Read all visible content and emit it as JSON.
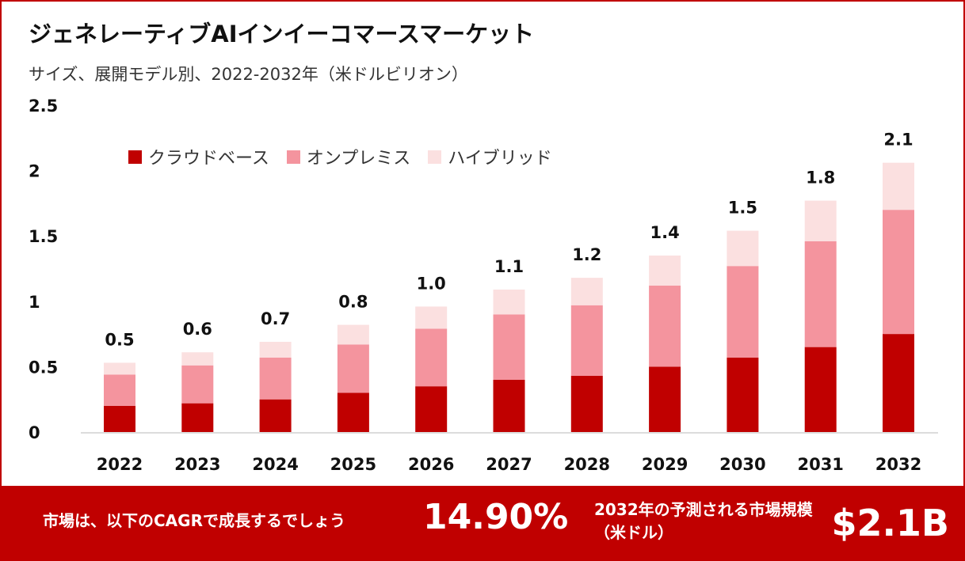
{
  "title": "ジェネレーティブAIインイーコマースマーケット",
  "subtitle": "サイズ、展開モデル別、2022-2032年（米ドルビリオン）",
  "legend": [
    {
      "label": "クラウドベース",
      "color": "#c00000"
    },
    {
      "label": "オンプレミス",
      "color": "#f4949e"
    },
    {
      "label": "ハイブリッド",
      "color": "#fbe0e0"
    }
  ],
  "footer": {
    "cagr_label": "市場は、以下のCAGRで成長するでしょう",
    "cagr_value": "14.90%",
    "size_label": "2032年の予測される市場規模（米ドル）",
    "size_value": "$2.1B"
  },
  "chart_data": {
    "type": "bar",
    "stacked": true,
    "categories": [
      "2022",
      "2023",
      "2024",
      "2025",
      "2026",
      "2027",
      "2028",
      "2029",
      "2030",
      "2031",
      "2032"
    ],
    "series": [
      {
        "name": "クラウドベース",
        "color": "#c00000",
        "values": [
          0.2,
          0.22,
          0.25,
          0.3,
          0.35,
          0.4,
          0.43,
          0.5,
          0.57,
          0.65,
          0.75
        ]
      },
      {
        "name": "オンプレミス",
        "color": "#f4949e",
        "values": [
          0.24,
          0.29,
          0.32,
          0.37,
          0.44,
          0.5,
          0.54,
          0.62,
          0.7,
          0.81,
          0.95
        ]
      },
      {
        "name": "ハイブリッド",
        "color": "#fbe0e0",
        "values": [
          0.09,
          0.1,
          0.12,
          0.15,
          0.17,
          0.19,
          0.21,
          0.23,
          0.27,
          0.31,
          0.36
        ]
      }
    ],
    "total_labels": [
      "0.5",
      "0.6",
      "0.7",
      "0.8",
      "1.0",
      "1.1",
      "1.2",
      "1.4",
      "1.5",
      "1.8",
      "2.1"
    ],
    "y_ticks": [
      "0",
      "0.5",
      "1",
      "1.5",
      "2",
      "2.5"
    ],
    "ylim": [
      0,
      2.5
    ],
    "grid": false,
    "legend_position": "top-left"
  }
}
